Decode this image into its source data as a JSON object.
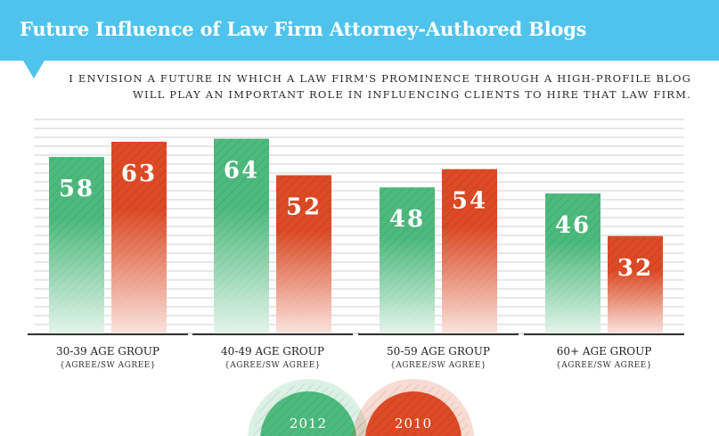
{
  "chart_data": {
    "type": "bar",
    "title": "Future Influence of Law Firm Attorney-Authored Blogs",
    "subtitle_lines": [
      "I ENVISION A FUTURE IN WHICH A LAW FIRM'S PROMINENCE THROUGH A HIGH-PROFILE BLOG",
      "WILL PLAY AN IMPORTANT ROLE IN INFLUENCING CLIENTS TO HIRE THAT LAW FIRM."
    ],
    "categories": [
      "30-39 AGE GROUP",
      "40-49 AGE GROUP",
      "50-59 AGE GROUP",
      "60+ AGE GROUP"
    ],
    "category_sublabel": "{AGREE/SW AGREE}",
    "series": [
      {
        "name": "2012",
        "values": [
          58,
          64,
          48,
          46
        ],
        "color": "#4dba7d"
      },
      {
        "name": "2010",
        "values": [
          63,
          52,
          54,
          32
        ],
        "color": "#dd4a25"
      }
    ],
    "ylim": [
      0,
      75
    ],
    "grid": true,
    "legend_position": "bottom"
  },
  "colors": {
    "banner": "#4fc3eb",
    "green": "#4dba7d",
    "red": "#dd4a25",
    "grid": "#cfcfcf"
  }
}
